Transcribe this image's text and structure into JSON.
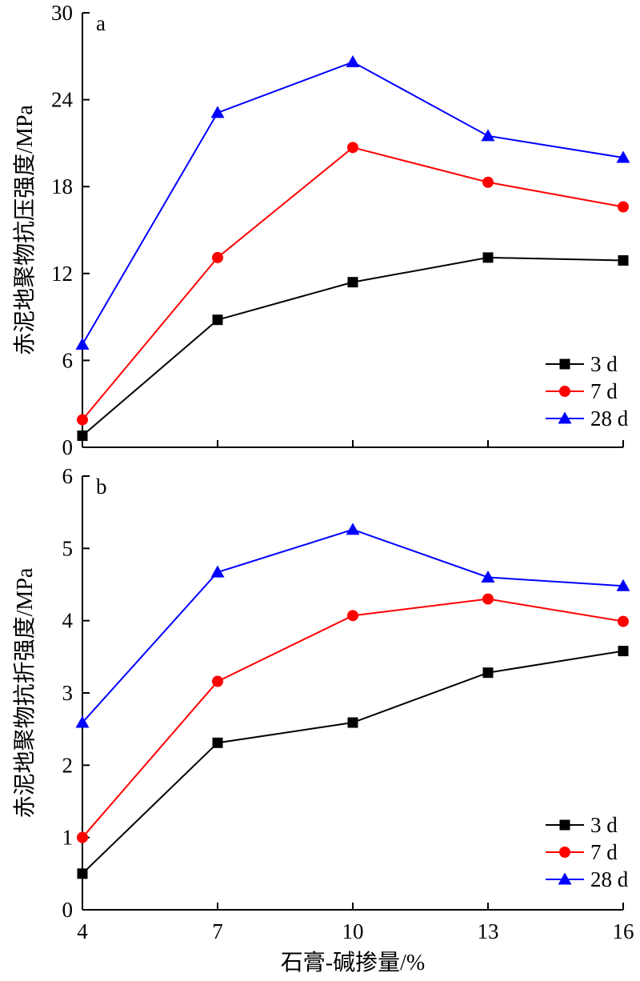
{
  "chart_data": [
    {
      "panel": "a",
      "type": "line",
      "ylabel": "赤泥地聚物抗压强度/MPa",
      "xlabel": "石膏-碱掺量/%",
      "x": [
        4,
        7,
        10,
        13,
        16
      ],
      "xlim": [
        4,
        16
      ],
      "ylim": [
        0,
        30
      ],
      "yticks": [
        0,
        6,
        12,
        18,
        24,
        30
      ],
      "legend_position": "bottom-right",
      "grid": false,
      "series": [
        {
          "name": "3 d",
          "marker": "square",
          "color": "#000000",
          "values": [
            0.8,
            8.8,
            11.4,
            13.1,
            12.9
          ]
        },
        {
          "name": "7 d",
          "marker": "circle",
          "color": "#ff0000",
          "values": [
            1.9,
            13.1,
            20.7,
            18.3,
            16.6
          ]
        },
        {
          "name": "28 d",
          "marker": "triangle",
          "color": "#0000ff",
          "values": [
            7.1,
            23.1,
            26.6,
            21.5,
            20.0
          ]
        }
      ]
    },
    {
      "panel": "b",
      "type": "line",
      "ylabel": "赤泥地聚物抗折强度/MPa",
      "xlabel": "石膏-碱掺量/%",
      "x": [
        4,
        7,
        10,
        13,
        16
      ],
      "xlim": [
        4,
        16
      ],
      "ylim": [
        0,
        6
      ],
      "yticks": [
        0,
        1,
        2,
        3,
        4,
        5,
        6
      ],
      "legend_position": "bottom-right",
      "grid": false,
      "series": [
        {
          "name": "3 d",
          "marker": "square",
          "color": "#000000",
          "values": [
            0.5,
            2.31,
            2.59,
            3.28,
            3.58
          ]
        },
        {
          "name": "7 d",
          "marker": "circle",
          "color": "#ff0000",
          "values": [
            1.0,
            3.16,
            4.07,
            4.3,
            3.99
          ]
        },
        {
          "name": "28 d",
          "marker": "triangle",
          "color": "#0000ff",
          "values": [
            2.59,
            4.67,
            5.26,
            4.6,
            4.48
          ]
        }
      ]
    }
  ]
}
